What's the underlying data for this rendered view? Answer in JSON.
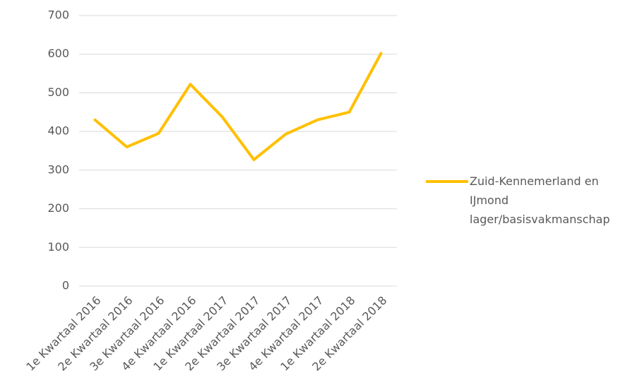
{
  "chart_data": {
    "type": "line",
    "categories": [
      "1e Kwartaal 2016",
      "2e Kwartaal 2016",
      "3e Kwartaal 2016",
      "4e Kwartaal 2016",
      "1e Kwartaal 2017",
      "2e Kwartaal 2017",
      "3e Kwartaal 2017",
      "4e Kwartaal 2017",
      "1e Kwartaal 2018",
      "2e Kwartaal 2018"
    ],
    "series": [
      {
        "name": "Zuid-Kennemerland en IJmond lager/basisvakmanschap",
        "color": "#ffc000",
        "values": [
          430,
          360,
          395,
          522,
          438,
          327,
          393,
          430,
          450,
          602
        ]
      }
    ],
    "ylim": [
      0,
      700
    ],
    "yticks": [
      0,
      100,
      200,
      300,
      400,
      500,
      600,
      700
    ],
    "grid": true,
    "legend": "right"
  }
}
